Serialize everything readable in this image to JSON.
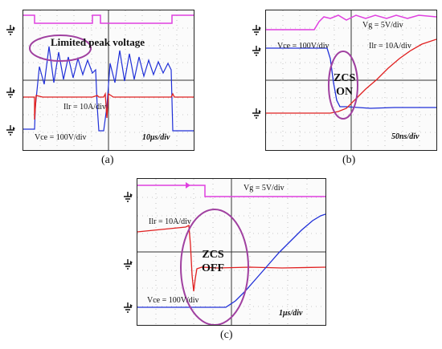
{
  "panels": [
    {
      "id": "a",
      "caption": "(a)",
      "timebase": "10μs/div",
      "labels": {
        "peak": "Limited peak voltage",
        "ilr": "Ilr  = 10A/div",
        "vce": "Vce = 100V/div"
      }
    },
    {
      "id": "b",
      "caption": "(b)",
      "timebase": "50ns/div",
      "labels": {
        "vg": "Vg = 5V/div",
        "vce": "Vce = 100V/div",
        "ilr": "Ilr  = 10A/div",
        "zcs_line1": "ZCS",
        "zcs_line2": "ON"
      }
    },
    {
      "id": "c",
      "caption": "(c)",
      "timebase": "1μs/div",
      "labels": {
        "vg": "Vg = 5V/div",
        "ilr": "Ilr = 10A/div",
        "vce": "Vce = 100V/div",
        "zcs_line1": "ZCS",
        "zcs_line2": "OFF"
      }
    }
  ],
  "colors": {
    "vg": "#e040e0",
    "ilr": "#e02020",
    "vce": "#2030d8",
    "ellipse": "#a040a0",
    "grid": "#333333"
  },
  "chart_data": [
    {
      "type": "line",
      "panel": "a",
      "series": [
        {
          "name": "Vg",
          "values": "switching gate pulses, 2 cycles"
        },
        {
          "name": "Ilr",
          "values": "current spikes at turn-on"
        },
        {
          "name": "Vce",
          "values": "damped resonant ringing with limited peak voltage"
        }
      ]
    },
    {
      "type": "line",
      "panel": "b",
      "series": [
        {
          "name": "Vg",
          "values": "gate rises to high"
        },
        {
          "name": "Vce",
          "values": "falls to zero before current rises"
        },
        {
          "name": "Ilr",
          "values": "ramps up after Vce reaches zero"
        }
      ]
    },
    {
      "type": "line",
      "panel": "c",
      "series": [
        {
          "name": "Vg",
          "values": "gate falls to low"
        },
        {
          "name": "Ilr",
          "values": "drops to zero with negative spike"
        },
        {
          "name": "Vce",
          "values": "ramps up after current reaches zero"
        }
      ]
    }
  ]
}
